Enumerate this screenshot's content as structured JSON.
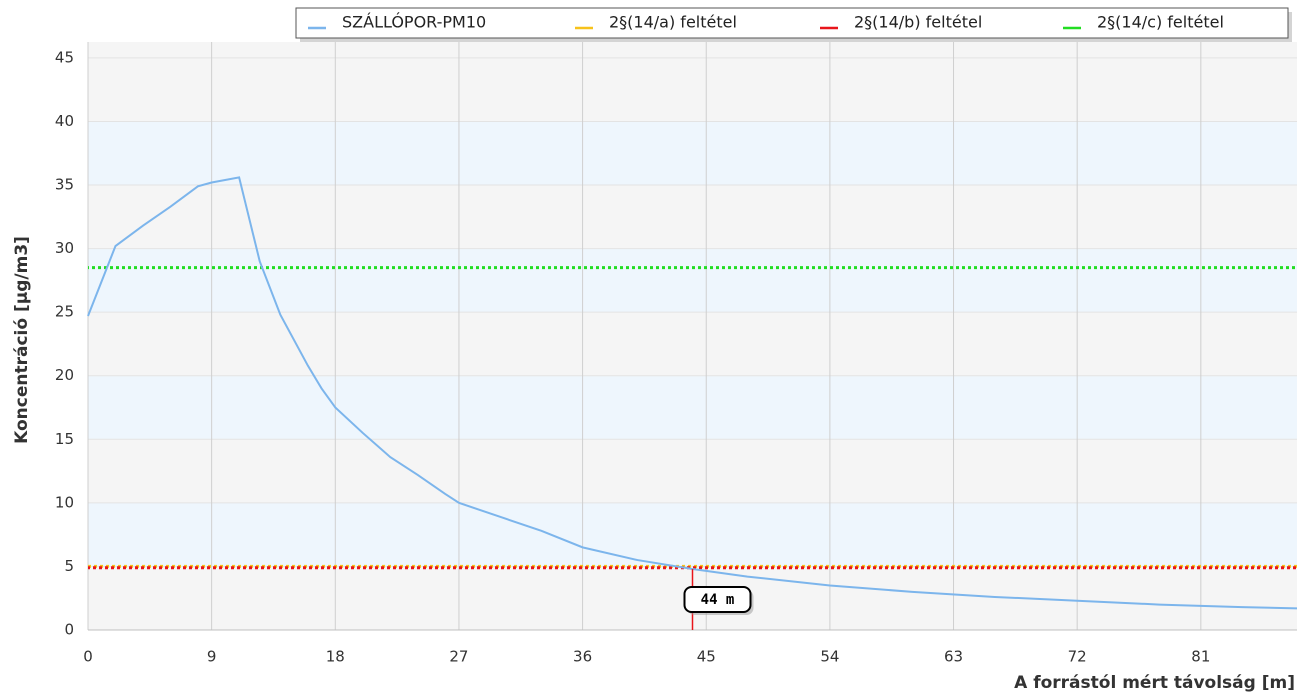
{
  "chart_data": {
    "type": "line",
    "xlabel": "A forrástól mért távolság [m]",
    "ylabel": "Koncentráció [µg/m3]",
    "xlim": [
      0,
      88
    ],
    "xticks": [
      0,
      9,
      18,
      27,
      36,
      45,
      54,
      63,
      72,
      81
    ],
    "ylim": [
      0,
      46.25
    ],
    "yticks": [
      0,
      5,
      10,
      15,
      20,
      25,
      30,
      35,
      40,
      45
    ],
    "grid": true,
    "bands": true,
    "legend": "top-right",
    "series": [
      {
        "name": "SZÁLLÓPOR-PM10",
        "color": "#7cb5ec",
        "x": [
          0,
          2,
          4,
          6,
          8,
          9,
          11,
          12.5,
          14,
          16,
          17,
          18,
          20,
          22,
          24,
          26,
          27,
          30,
          33,
          36,
          40,
          44,
          48,
          54,
          60,
          66,
          72,
          78,
          84,
          88
        ],
        "values": [
          24.7,
          30.2,
          31.8,
          33.3,
          34.9,
          35.2,
          35.6,
          29,
          24.8,
          20.8,
          19,
          17.5,
          15.5,
          13.6,
          12.2,
          10.7,
          10,
          8.9,
          7.8,
          6.5,
          5.5,
          4.8,
          4.2,
          3.5,
          3.0,
          2.6,
          2.3,
          2.0,
          1.8,
          1.7
        ]
      }
    ],
    "thresholds": [
      {
        "name": "2§(14/a) feltétel",
        "color": "#f7c21b",
        "value": 5
      },
      {
        "name": "2§(14/b) feltétel",
        "color": "#e8151b",
        "value": 4.9
      },
      {
        "name": "2§(14/c) feltétel",
        "color": "#22dd22",
        "value": 28.5
      }
    ],
    "annotation": {
      "x": 44,
      "label": "44 m",
      "color": "#e8151b"
    }
  }
}
